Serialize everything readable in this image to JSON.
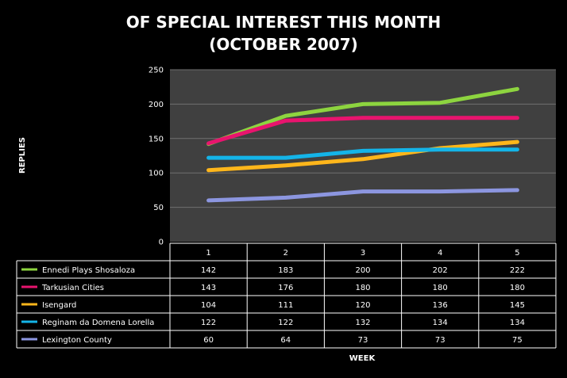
{
  "chart_data": {
    "type": "line",
    "title_line1": "OF SPECIAL INTEREST THIS MONTH",
    "title_line2": "(OCTOBER 2007)",
    "xlabel": "WEEK",
    "ylabel": "REPLIES",
    "ylim": [
      0,
      250
    ],
    "yticks": [
      "0",
      "50",
      "100",
      "150",
      "200",
      "250"
    ],
    "categories": [
      "1",
      "2",
      "3",
      "4",
      "5"
    ],
    "grid": true,
    "legend": "data-table-below",
    "series": [
      {
        "name": "Ennedi Plays  Shosaloza",
        "color": "#8dd43f",
        "values": [
          142,
          183,
          200,
          202,
          222
        ]
      },
      {
        "name": "Tarkusian Cities",
        "color": "#e8146e",
        "values": [
          143,
          176,
          180,
          180,
          180
        ]
      },
      {
        "name": "Isengard",
        "color": "#ffb61b",
        "values": [
          104,
          111,
          120,
          136,
          145
        ]
      },
      {
        "name": "Reginam da Domena Lorella",
        "color": "#14b4e8",
        "values": [
          122,
          122,
          132,
          134,
          134
        ]
      },
      {
        "name": "Lexington County",
        "color": "#8c96e0",
        "values": [
          60,
          64,
          73,
          73,
          75
        ]
      }
    ]
  }
}
